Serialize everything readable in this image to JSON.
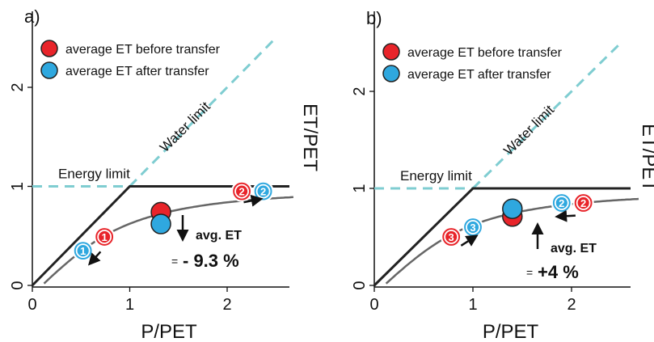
{
  "colors": {
    "before": "#e8242a",
    "after": "#2fa8df",
    "budyko": "#666666",
    "limits": "#222222",
    "water_limit": "#7fcdd1",
    "axis": "#111111",
    "arrow": "#111111"
  },
  "chart_data": [
    {
      "type": "scatter",
      "panel_label": "a)",
      "xlabel": "P/PET",
      "ylabel": "ET/PET",
      "xlim": [
        0,
        2.6
      ],
      "ylim": [
        0,
        2.5
      ],
      "xticks": [
        "0",
        "1",
        "2"
      ],
      "yticks": [
        "0",
        "1",
        "2"
      ],
      "legend": {
        "placement": "top-left",
        "entries": [
          {
            "label": "average ET before transfer",
            "color_key": "before"
          },
          {
            "label": "average ET after transfer",
            "color_key": "after"
          }
        ]
      },
      "limit_labels": {
        "energy": "Energy limit",
        "water": "Water limit"
      },
      "annotation": {
        "direction": "down",
        "line1": "avg. ET",
        "prefix": "=",
        "value": "- 9.3 %"
      },
      "averages": {
        "before": {
          "x": 1.32,
          "y": 0.74
        },
        "after": {
          "x": 1.32,
          "y": 0.62
        }
      },
      "points": [
        {
          "label": "1",
          "group": "before",
          "x": 0.74,
          "y": 0.49
        },
        {
          "label": "1",
          "group": "after",
          "x": 0.52,
          "y": 0.35
        },
        {
          "label": "2",
          "group": "before",
          "x": 2.15,
          "y": 0.95
        },
        {
          "label": "2",
          "group": "after",
          "x": 2.37,
          "y": 0.95
        }
      ],
      "movement_arrows": [
        {
          "from": [
            0.7,
            0.34
          ],
          "to": [
            0.6,
            0.23
          ]
        },
        {
          "from": [
            2.17,
            0.84
          ],
          "to": [
            2.33,
            0.87
          ]
        }
      ]
    },
    {
      "type": "scatter",
      "panel_label": "b)",
      "xlabel": "P/PET",
      "ylabel": "ET/PET",
      "xlim": [
        0,
        2.6
      ],
      "ylim": [
        0,
        2.5
      ],
      "xticks": [
        "0",
        "1",
        "2"
      ],
      "yticks": [
        "0",
        "1",
        "2"
      ],
      "legend": {
        "placement": "top-left",
        "entries": [
          {
            "label": "average ET before transfer",
            "color_key": "before"
          },
          {
            "label": "average ET after transfer",
            "color_key": "after"
          }
        ]
      },
      "limit_labels": {
        "energy": "Energy limit",
        "water": "Water limit"
      },
      "annotation": {
        "direction": "up",
        "line1": "avg. ET",
        "prefix": "=",
        "value": "+4 %"
      },
      "averages": {
        "before": {
          "x": 1.4,
          "y": 0.71
        },
        "after": {
          "x": 1.4,
          "y": 0.79
        }
      },
      "points": [
        {
          "label": "3",
          "group": "before",
          "x": 0.78,
          "y": 0.5
        },
        {
          "label": "3",
          "group": "after",
          "x": 1.0,
          "y": 0.6
        },
        {
          "label": "2",
          "group": "before",
          "x": 2.12,
          "y": 0.85
        },
        {
          "label": "2",
          "group": "after",
          "x": 1.9,
          "y": 0.85
        }
      ],
      "movement_arrows": [
        {
          "from": [
            0.88,
            0.41
          ],
          "to": [
            1.02,
            0.5
          ]
        },
        {
          "from": [
            2.04,
            0.72
          ],
          "to": [
            1.87,
            0.71
          ]
        }
      ]
    }
  ]
}
